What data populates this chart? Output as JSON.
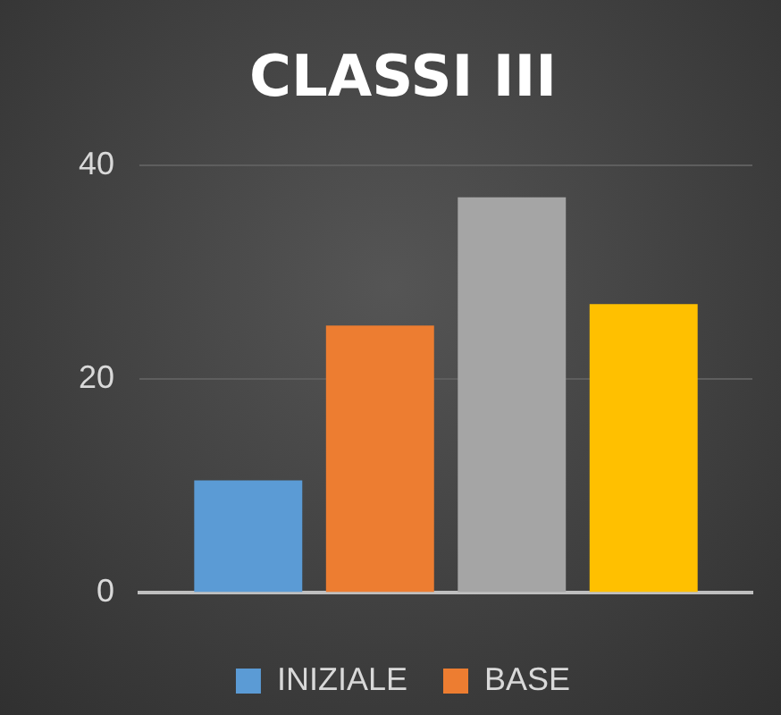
{
  "chart_data": {
    "type": "bar",
    "title": "CLASSI III",
    "categories": [
      null
    ],
    "series": [
      {
        "name": "INIZIALE",
        "color": "#5b9bd5",
        "values": [
          10.5
        ]
      },
      {
        "name": "BASE",
        "color": "#ed7d31",
        "values": [
          25
        ]
      },
      {
        "color": "#a5a5a5",
        "values": [
          37
        ]
      },
      {
        "color": "#ffc000",
        "values": [
          27
        ]
      }
    ],
    "ylim": [
      0,
      40
    ],
    "yticks": [
      0,
      20,
      40
    ],
    "grid": "y",
    "legend": "bottom"
  }
}
